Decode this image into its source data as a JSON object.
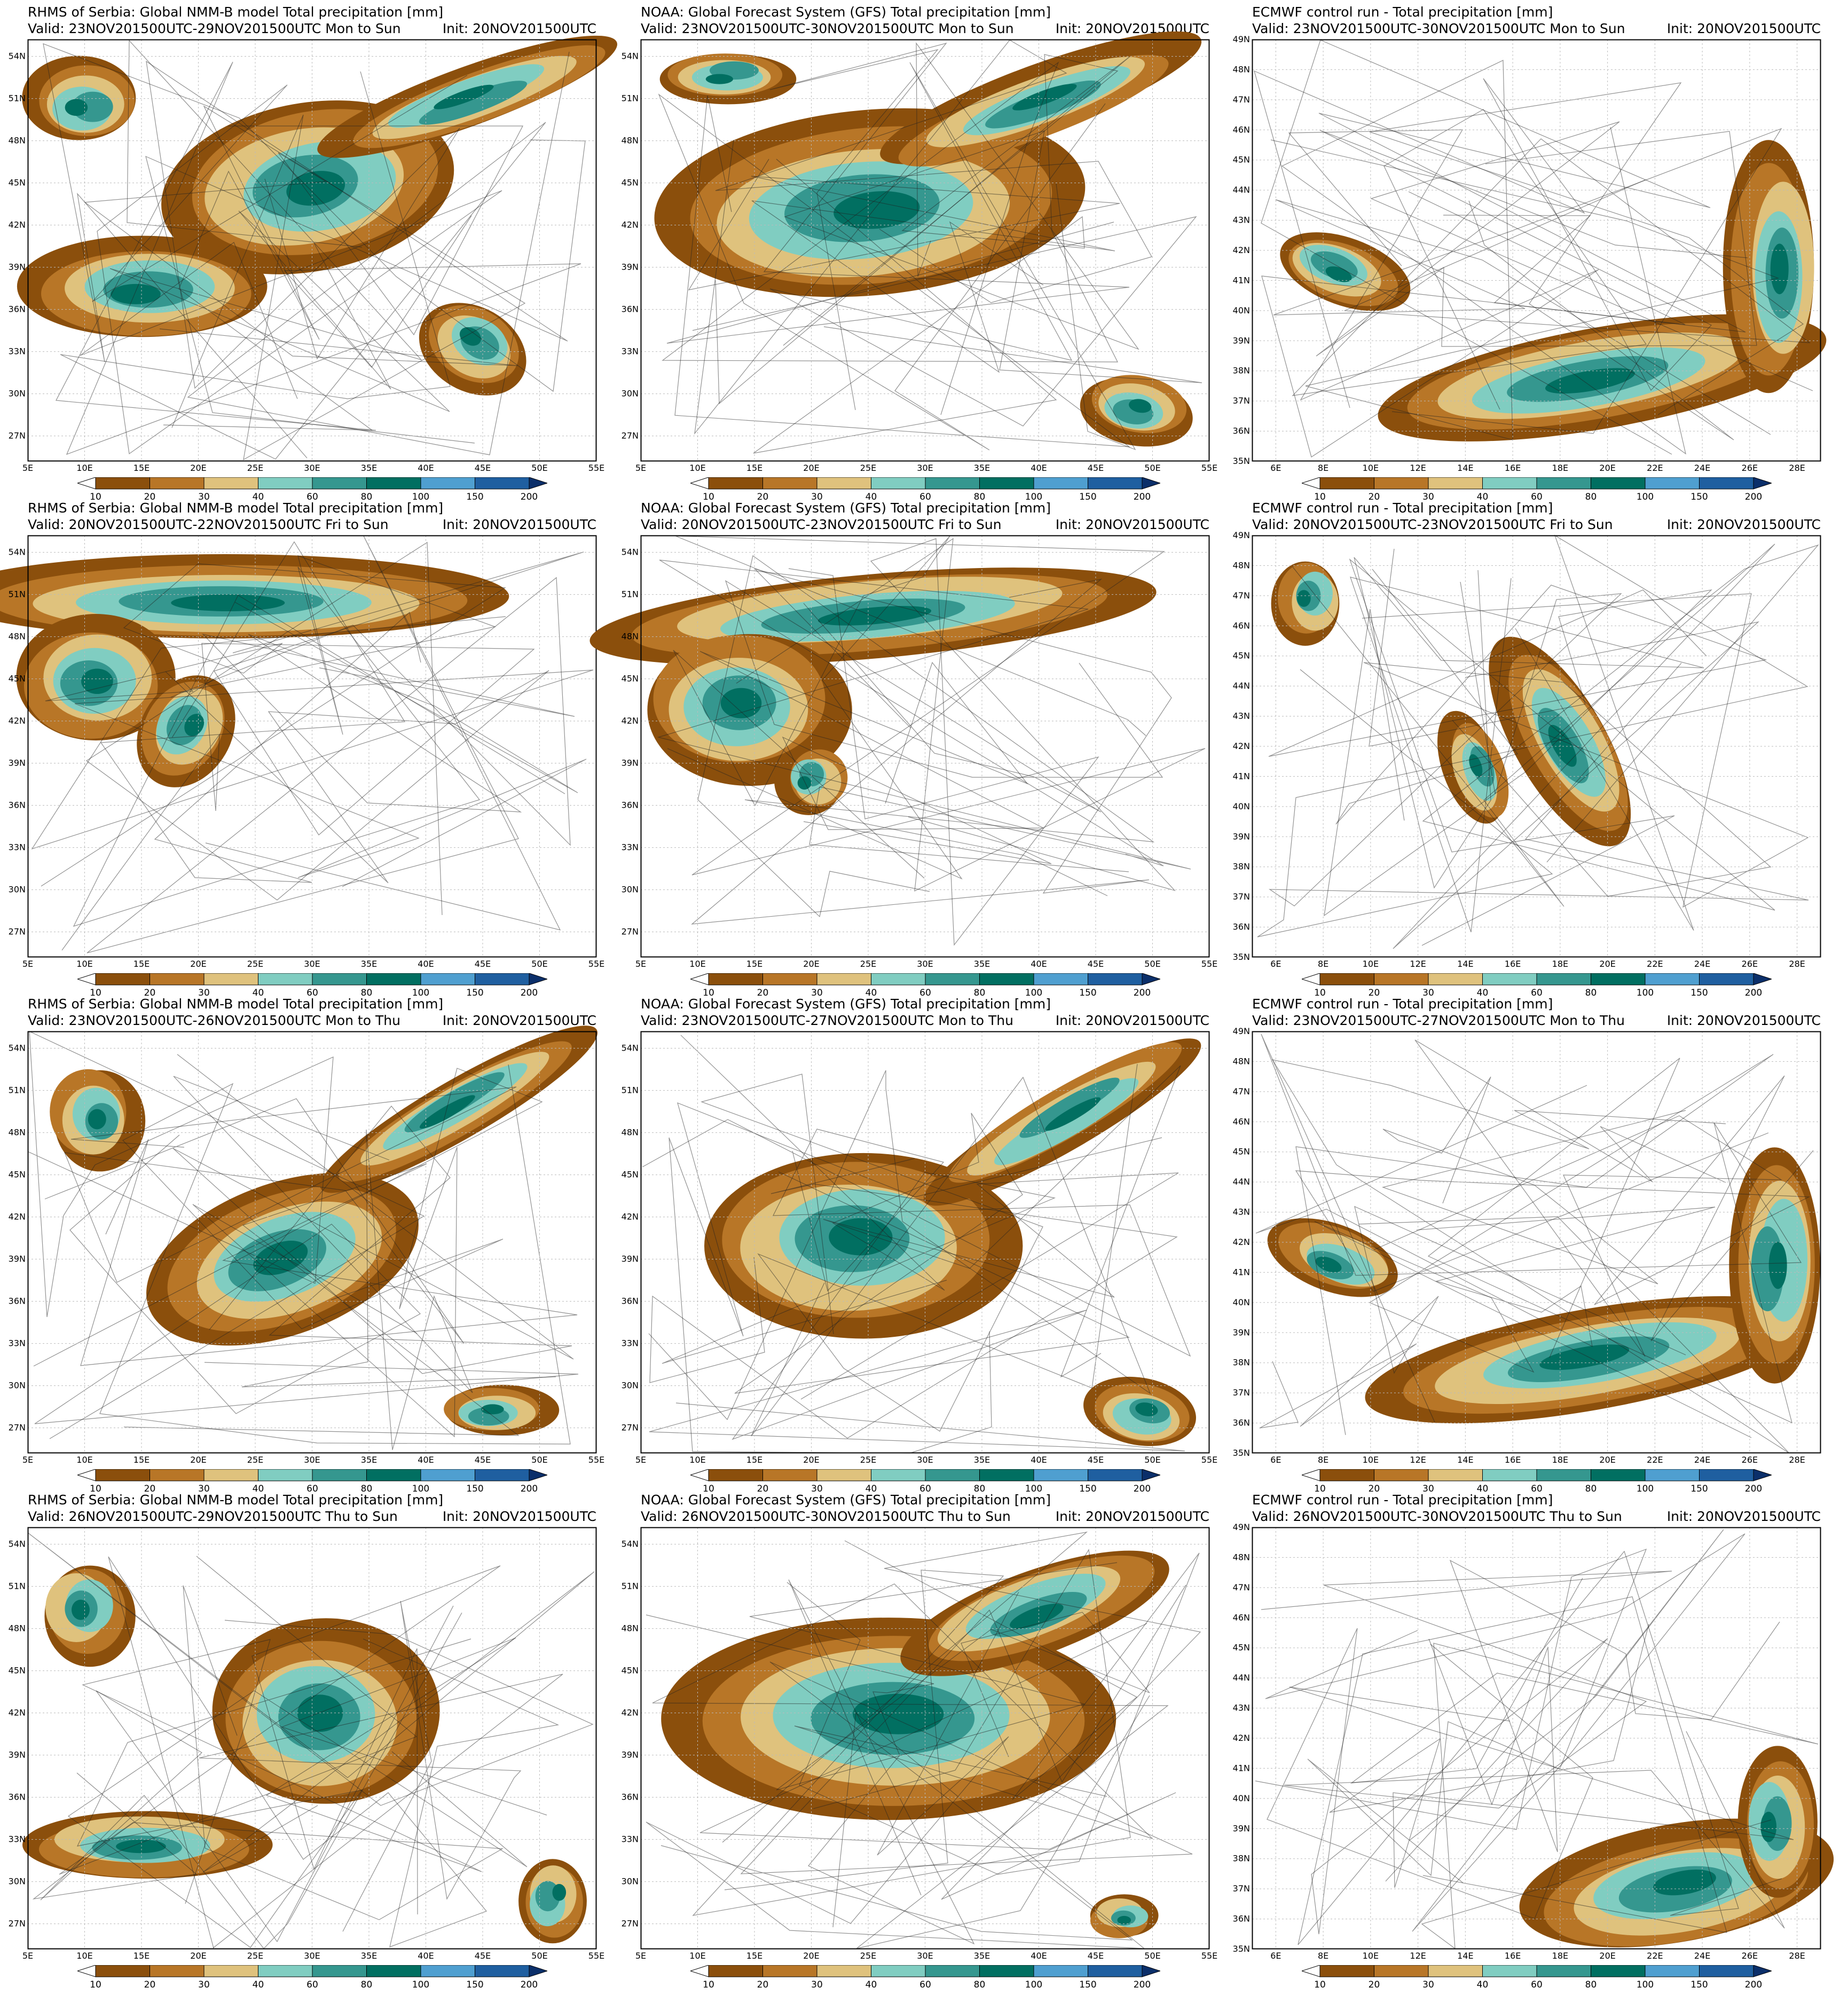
{
  "colorbar": {
    "levels": [
      "10",
      "20",
      "30",
      "40",
      "60",
      "80",
      "100",
      "150",
      "200"
    ],
    "colors": [
      "#ffffff",
      "#8b4f0c",
      "#b87627",
      "#dfc27d",
      "#80cdc1",
      "#35978f",
      "#016f61",
      "#4f9fd0",
      "#1f5fa0",
      "#0b2f6a"
    ]
  },
  "axes": {
    "nmmb": {
      "x_labels": [
        "5E",
        "10E",
        "15E",
        "20E",
        "25E",
        "30E",
        "35E",
        "40E",
        "45E",
        "50E",
        "55E"
      ],
      "y_labels": [
        "54N",
        "51N",
        "48N",
        "45N",
        "42N",
        "39N",
        "36N",
        "33N",
        "30N",
        "27N"
      ]
    },
    "gfs": {
      "x_labels": [
        "5E",
        "10E",
        "15E",
        "20E",
        "25E",
        "30E",
        "35E",
        "40E",
        "45E",
        "50E",
        "55E"
      ],
      "y_labels": [
        "54N",
        "51N",
        "48N",
        "45N",
        "42N",
        "39N",
        "36N",
        "33N",
        "30N",
        "27N"
      ]
    },
    "ecmwf": {
      "x_labels": [
        "6E",
        "8E",
        "10E",
        "12E",
        "14E",
        "16E",
        "18E",
        "20E",
        "22E",
        "24E",
        "26E",
        "28E"
      ],
      "y_labels": [
        "49N",
        "48N",
        "47N",
        "46N",
        "45N",
        "44N",
        "43N",
        "42N",
        "41N",
        "40N",
        "39N",
        "38N",
        "37N",
        "36N",
        "35N"
      ]
    }
  },
  "panels": [
    {
      "id": "nmmb-1",
      "model": "nmmb",
      "title": "RHMS of Serbia: Global NMM-B model Total precipitation [mm]",
      "valid": "Valid: 23NOV201500UTC-29NOV201500UTC Mon to Sun",
      "init": "Init: 20NOV201500UTC"
    },
    {
      "id": "gfs-1",
      "model": "gfs",
      "title": "NOAA: Global Forecast System (GFS) Total precipitation [mm]",
      "valid": "Valid: 23NOV201500UTC-30NOV201500UTC Mon to Sun",
      "init": "Init: 20NOV201500UTC"
    },
    {
      "id": "ecmwf-1",
      "model": "ecmwf",
      "title": "ECMWF control run - Total precipitation [mm]",
      "valid": "Valid: 23NOV201500UTC-30NOV201500UTC Mon to Sun",
      "init": "Init: 20NOV201500UTC"
    },
    {
      "id": "nmmb-2",
      "model": "nmmb",
      "title": "RHMS of Serbia: Global NMM-B model Total precipitation [mm]",
      "valid": "Valid: 20NOV201500UTC-22NOV201500UTC Fri to Sun",
      "init": "Init: 20NOV201500UTC"
    },
    {
      "id": "gfs-2",
      "model": "gfs",
      "title": "NOAA: Global Forecast System (GFS) Total precipitation [mm]",
      "valid": "Valid: 20NOV201500UTC-23NOV201500UTC Fri to Sun",
      "init": "Init: 20NOV201500UTC"
    },
    {
      "id": "ecmwf-2",
      "model": "ecmwf",
      "title": "ECMWF control run - Total precipitation [mm]",
      "valid": "Valid: 20NOV201500UTC-23NOV201500UTC Fri to Sun",
      "init": "Init: 20NOV201500UTC"
    },
    {
      "id": "nmmb-3",
      "model": "nmmb",
      "title": "RHMS of Serbia: Global NMM-B model Total precipitation [mm]",
      "valid": "Valid: 23NOV201500UTC-26NOV201500UTC Mon to Thu",
      "init": "Init: 20NOV201500UTC"
    },
    {
      "id": "gfs-3",
      "model": "gfs",
      "title": "NOAA: Global Forecast System (GFS) Total precipitation [mm]",
      "valid": "Valid: 23NOV201500UTC-27NOV201500UTC Mon to Thu",
      "init": "Init: 20NOV201500UTC"
    },
    {
      "id": "ecmwf-3",
      "model": "ecmwf",
      "title": "ECMWF control run - Total precipitation [mm]",
      "valid": "Valid: 23NOV201500UTC-27NOV201500UTC Mon to Thu",
      "init": "Init: 20NOV201500UTC"
    },
    {
      "id": "nmmb-4",
      "model": "nmmb",
      "title": "RHMS of Serbia: Global NMM-B model Total precipitation [mm]",
      "valid": "Valid: 26NOV201500UTC-29NOV201500UTC Thu to Sun",
      "init": "Init: 20NOV201500UTC"
    },
    {
      "id": "gfs-4",
      "model": "gfs",
      "title": "NOAA: Global Forecast System (GFS) Total precipitation [mm]",
      "valid": "Valid: 26NOV201500UTC-30NOV201500UTC Thu to Sun",
      "init": "Init: 20NOV201500UTC"
    },
    {
      "id": "ecmwf-4",
      "model": "ecmwf",
      "title": "ECMWF control run - Total precipitation [mm]",
      "valid": "Valid: 26NOV201500UTC-30NOV201500UTC Thu to Sun",
      "init": "Init: 20NOV201500UTC"
    }
  ]
}
